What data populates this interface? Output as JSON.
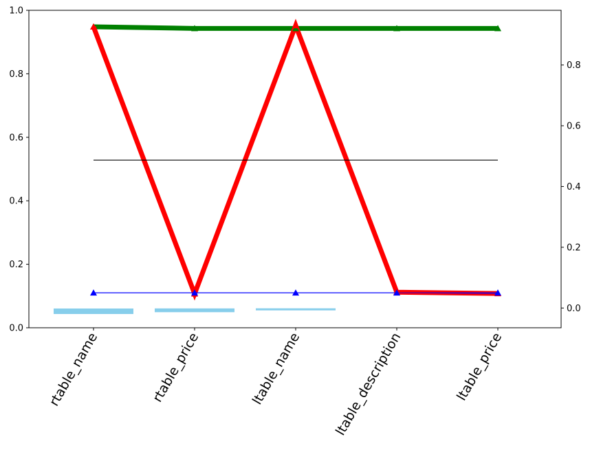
{
  "chart_data": {
    "type": "line",
    "categories": [
      "rtable_name",
      "rtable_price",
      "ltable_name",
      "ltable_description",
      "ltable_price"
    ],
    "left_ylim": [
      0,
      1.0
    ],
    "left_yticks": [
      "0.0",
      "0.2",
      "0.4",
      "0.6",
      "0.8",
      "1.0"
    ],
    "right_ylim": [
      -0.065,
      0.98
    ],
    "right_yticks": [
      "0.0",
      "0.2",
      "0.4",
      "0.6",
      "0.8"
    ],
    "grid": false,
    "series": [
      {
        "axis": "left",
        "style": "thick-line-triangles",
        "color": "#008000",
        "values": [
          0.948,
          0.943,
          0.943,
          0.943,
          0.943
        ]
      },
      {
        "axis": "left",
        "style": "thick-line-triangles",
        "color": "#ff0000",
        "values": [
          0.948,
          0.107,
          0.952,
          0.112,
          0.108
        ]
      },
      {
        "axis": "left",
        "style": "thin-line",
        "color": "#000000",
        "values": [
          0.528,
          0.528,
          0.528,
          0.528,
          0.528
        ]
      },
      {
        "axis": "right",
        "style": "thin-line-triangles",
        "color": "#0000ff",
        "values": [
          0.05,
          0.05,
          0.05,
          0.05,
          0.05
        ]
      },
      {
        "axis": "right",
        "style": "thin-line",
        "color": "#800080",
        "values": [
          null,
          null,
          null,
          0.05,
          0.047
        ]
      }
    ],
    "bars": {
      "axis": "left",
      "color": "#87ceeb",
      "values": [
        0.052,
        0.055,
        0.058,
        null,
        null
      ]
    }
  }
}
